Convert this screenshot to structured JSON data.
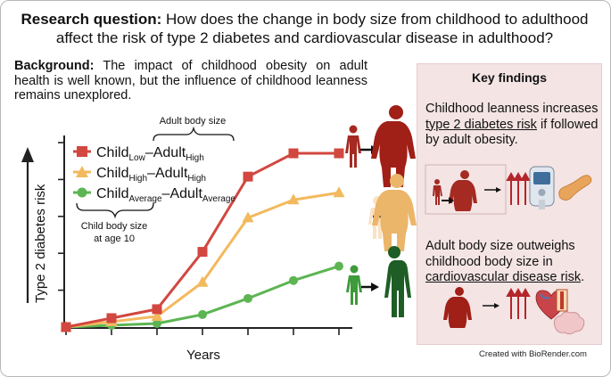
{
  "research_question": {
    "label": "Research question:",
    "text": "How does the change in body size from childhood to adulthood affect the risk of type 2 diabetes and cardiovascular disease in adulthood?"
  },
  "background": {
    "label": "Background:",
    "text": "The impact of childhood obesity on adult health is well known, but the influence of childhood leanness remains unexplored."
  },
  "key_findings": {
    "title": "Key findings",
    "finding1": {
      "pre": "Childhood leanness increases ",
      "link": "type 2 diabetes risk",
      "post": " if followed by adult obesity."
    },
    "finding2": {
      "pre": "Adult body size outweighs childhood body size in ",
      "link": "cardiovascular disease risk",
      "post": "."
    }
  },
  "diagram": {
    "adult_body_size_label": "Adult body size",
    "child_body_size_label": "Child body size",
    "child_age_label": "at age 10",
    "colors": {
      "red": "#d2473f",
      "orange": "#f3b95d",
      "green": "#5cb552"
    }
  },
  "chart_data": {
    "type": "line",
    "xlabel": "Years",
    "ylabel": "Type 2 diabetes risk",
    "x": [
      0,
      1,
      2,
      3,
      4,
      5,
      6
    ],
    "series": [
      {
        "name": "ChildLow–AdultHigh",
        "parts": [
          "Child",
          "Low",
          "–Adult",
          "High"
        ],
        "color": "#d2473f",
        "marker": "square",
        "values": [
          0.0,
          0.05,
          0.1,
          0.42,
          0.84,
          0.97,
          0.97
        ]
      },
      {
        "name": "ChildHigh–AdultHigh",
        "parts": [
          "Child",
          "High",
          "–Adult",
          "High"
        ],
        "color": "#f3b95d",
        "marker": "triangle",
        "values": [
          0.0,
          0.03,
          0.06,
          0.25,
          0.61,
          0.71,
          0.75
        ]
      },
      {
        "name": "ChildAverage–AdultAverage",
        "parts": [
          "Child",
          "Average",
          "–Adult",
          "Average"
        ],
        "color": "#5cb552",
        "marker": "circle",
        "values": [
          0.0,
          0.01,
          0.02,
          0.07,
          0.16,
          0.26,
          0.34
        ]
      }
    ]
  },
  "credit": "Created with BioRender.com"
}
